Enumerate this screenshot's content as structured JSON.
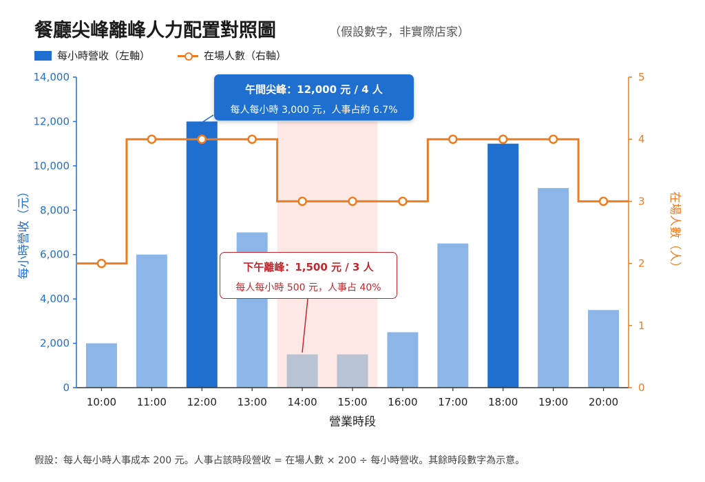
{
  "title": "餐廳尖峰離峰人力配置對照圖",
  "subtitle": "（假設數字，非實際店家）",
  "legend": {
    "bar_label": "每小時營收（左軸）",
    "line_label": "在場人數（右軸）"
  },
  "colors": {
    "bar_highlight": "#1f6fd1",
    "bar_normal": "#8db6e8",
    "bar_offpeak": "#b8c4d4",
    "line": "#ee7c1f",
    "offpeak_band": "#fde8e6",
    "axis_left": "#1f6fd1",
    "axis_right": "#ee7c1f",
    "offpeak_text": "#c0272d"
  },
  "callouts": {
    "peak": {
      "title": "午間尖峰：12,000 元 / 4 人",
      "sub": "每人每小時 3,000 元，人事占約 6.7%"
    },
    "offpeak": {
      "title": "下午離峰：1,500 元 / 3 人",
      "sub": "每人每小時 500 元，人事占 40%"
    }
  },
  "footnote": "假設：每人每小時人事成本 200 元。人事占該時段營收 = 在場人數 × 200 ÷ 每小時營收。其餘時段數字為示意。",
  "chart_data": {
    "type": "bar",
    "categories": [
      "10:00",
      "11:00",
      "12:00",
      "13:00",
      "14:00",
      "15:00",
      "16:00",
      "17:00",
      "18:00",
      "19:00",
      "20:00"
    ],
    "series": [
      {
        "name": "每小時營收（左軸）",
        "type": "bar",
        "axis": "left",
        "values": [
          2000,
          6000,
          12000,
          7000,
          1500,
          1500,
          2500,
          6500,
          11000,
          9000,
          3500
        ],
        "highlight": [
          false,
          false,
          true,
          false,
          false,
          false,
          false,
          false,
          true,
          false,
          false
        ],
        "offpeak": [
          false,
          false,
          false,
          false,
          true,
          true,
          false,
          false,
          false,
          false,
          false
        ]
      },
      {
        "name": "在場人數（右軸）",
        "type": "step-line",
        "axis": "right",
        "values": [
          2,
          4,
          4,
          4,
          3,
          3,
          3,
          4,
          4,
          4,
          3
        ]
      }
    ],
    "xlabel": "營業時段",
    "ylabel": "每小時營收（元）",
    "y2label": "在場人數（人）",
    "ylim": [
      0,
      14000
    ],
    "y2lim": [
      0,
      5
    ],
    "yticks": [
      "0",
      "2,000",
      "4,000",
      "6,000",
      "8,000",
      "10,000",
      "12,000",
      "14,000"
    ],
    "y2ticks": [
      "0",
      "1",
      "2",
      "3",
      "4",
      "5"
    ],
    "offpeak_range": [
      "14:00",
      "15:00"
    ],
    "grid": false,
    "legend_position": "top-left"
  }
}
